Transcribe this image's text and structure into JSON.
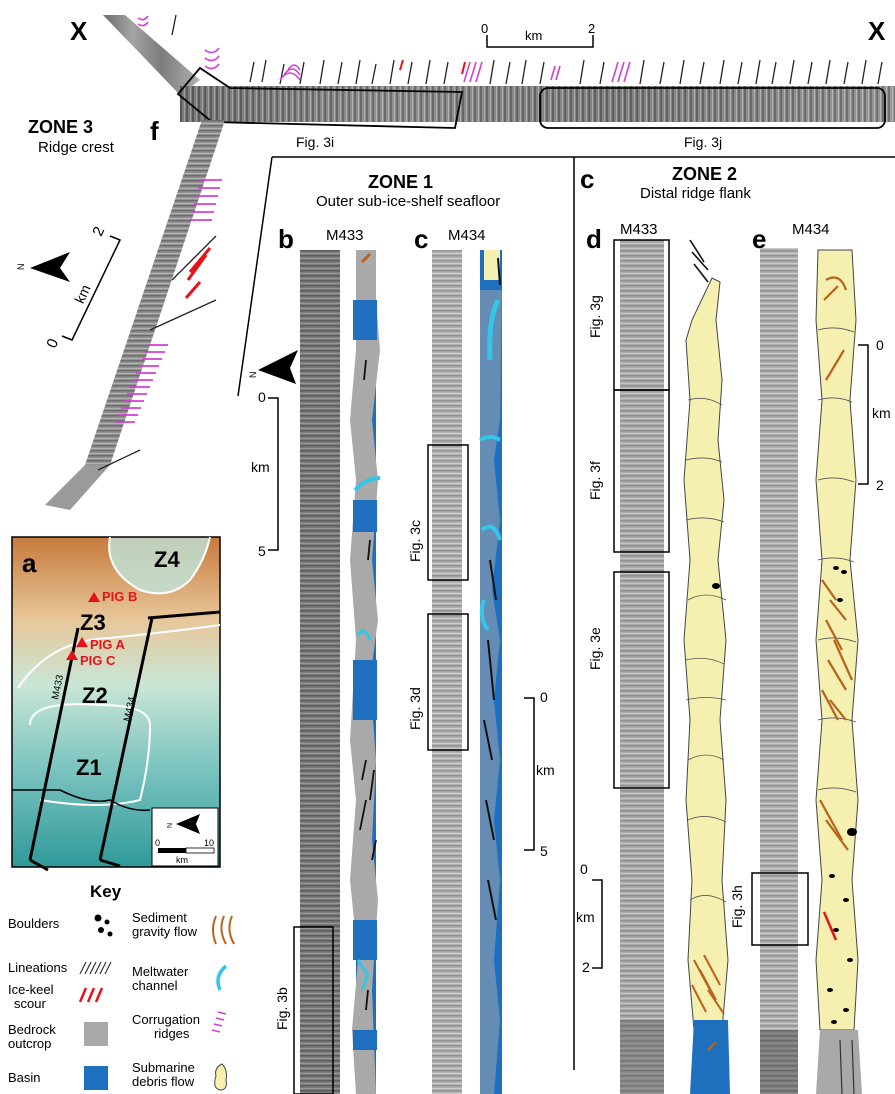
{
  "corner_labels": {
    "left": "X",
    "right": "X"
  },
  "top_scale": {
    "zero": "0",
    "two": "2",
    "unit": "km"
  },
  "zone3": {
    "title": "ZONE 3",
    "subtitle": "Ridge crest"
  },
  "zone1": {
    "title": "ZONE 1",
    "subtitle": "Outer sub-ice-shelf seafloor"
  },
  "zone2": {
    "label": "c",
    "title": "ZONE 2",
    "subtitle": "Distal ridge flank"
  },
  "panel_letters": {
    "f": "f",
    "b": "b",
    "c": "c",
    "d": "d",
    "e": "e",
    "a": "a"
  },
  "missions": {
    "b": "M433",
    "c": "M434",
    "d": "M433",
    "e": "M434"
  },
  "fig_refs": {
    "fig3i": "Fig. 3i",
    "fig3j": "Fig. 3j",
    "fig3c": "Fig. 3c",
    "fig3d": "Fig. 3d",
    "fig3b": "Fig. 3b",
    "fig3g": "Fig. 3g",
    "fig3f": "Fig. 3f",
    "fig3e": "Fig. 3e",
    "fig3h": "Fig. 3h"
  },
  "scales": {
    "zone3": {
      "zero": "0",
      "two": "2",
      "unit": "km"
    },
    "b": {
      "zero": "0",
      "five": "5",
      "unit": "km"
    },
    "c": {
      "zero": "0",
      "five": "5",
      "unit": "km"
    },
    "d": {
      "zero": "0",
      "two": "2",
      "unit": "km"
    },
    "e": {
      "zero": "0",
      "two": "2",
      "unit": "km"
    }
  },
  "north": "N",
  "inset_map": {
    "zones": [
      "Z4",
      "Z3",
      "Z2",
      "Z1"
    ],
    "sites": [
      "PIG B",
      "PIG A",
      "PIG C"
    ],
    "tracks": [
      "M433",
      "M434"
    ],
    "scale": {
      "zero": "0",
      "ten": "10",
      "unit": "km"
    }
  },
  "key": {
    "title": "Key",
    "items": {
      "boulders": "Boulders",
      "lineations": "Lineations",
      "ice_keel_1": "Ice-keel",
      "ice_keel_2": "scour",
      "bedrock_1": "Bedrock",
      "bedrock_2": "outcrop",
      "basin": "Basin",
      "sgf_1": "Sediment",
      "sgf_2": "gravity flow",
      "mw_1": "Meltwater",
      "mw_2": "channel",
      "corr_1": "Corrugation",
      "corr_2": "ridges",
      "sdf_1": "Submarine",
      "sdf_2": "debris flow"
    }
  },
  "colors": {
    "bedrock": "#a9a9a9",
    "basin": "#1f6fbf",
    "debris": "#f5f0b0",
    "meltwater": "#34c6e8",
    "sediment_flow": "#b8621b",
    "corrugation": "#d23fd6",
    "scour": "#e8111b"
  }
}
